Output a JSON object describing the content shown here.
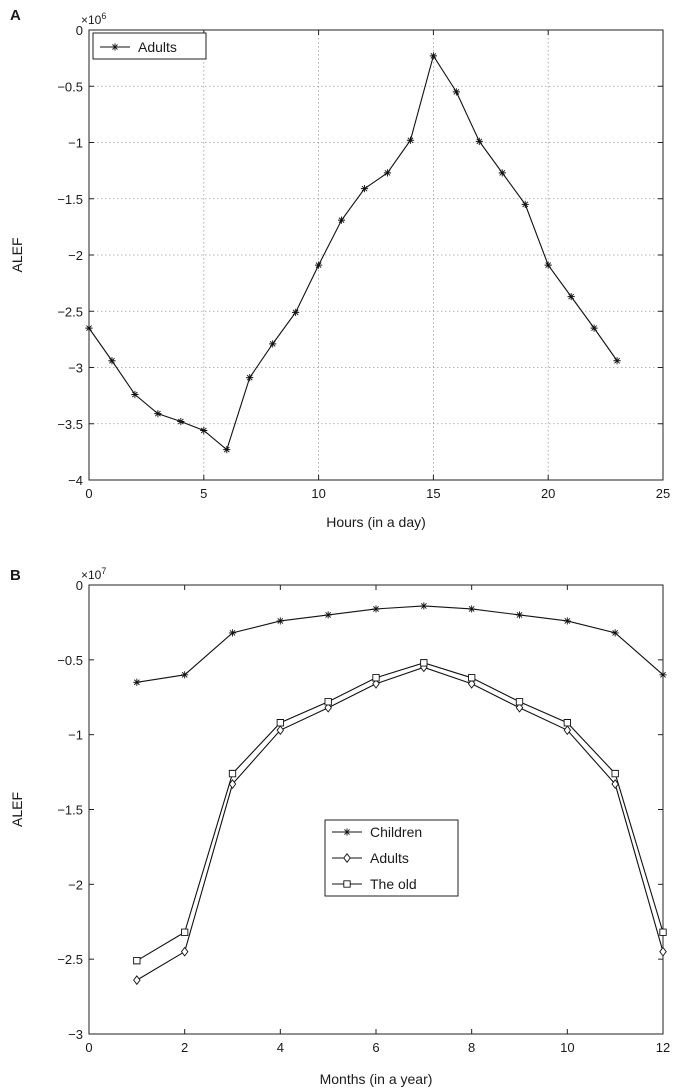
{
  "chart_data": [
    {
      "panel": "A",
      "type": "line",
      "xlabel": "Hours (in a day)",
      "ylabel": "ALEF",
      "y_multiplier": "×10",
      "y_multiplier_exp": "6",
      "xlim": [
        0,
        25
      ],
      "ylim": [
        -4,
        0
      ],
      "xticks": [
        0,
        5,
        10,
        15,
        20,
        25
      ],
      "yticks": [
        0,
        -0.5,
        -1,
        -1.5,
        -2,
        -2.5,
        -3,
        -3.5,
        -4
      ],
      "xtick_labels": [
        "0",
        "5",
        "10",
        "15",
        "20",
        "25"
      ],
      "ytick_labels": [
        "0",
        "−0.5",
        "−1",
        "−1.5",
        "−2",
        "−2.5",
        "−3",
        "−3.5",
        "−4"
      ],
      "grid": true,
      "legend_position": "top-left",
      "series": [
        {
          "name": "Adults",
          "marker": "star",
          "x": [
            0,
            1,
            2,
            3,
            4,
            5,
            6,
            7,
            8,
            9,
            10,
            11,
            12,
            13,
            14,
            15,
            16,
            17,
            18,
            19,
            20,
            21,
            22,
            23
          ],
          "y": [
            -2.65,
            -2.94,
            -3.24,
            -3.41,
            -3.48,
            -3.56,
            -3.73,
            -3.09,
            -2.79,
            -2.51,
            -2.09,
            -1.69,
            -1.41,
            -1.27,
            -0.98,
            -0.23,
            -0.55,
            -0.99,
            -1.27,
            -1.55,
            -2.09,
            -2.37,
            -2.65,
            -2.94
          ]
        }
      ]
    },
    {
      "panel": "B",
      "type": "line",
      "xlabel": "Months (in a year)",
      "ylabel": "ALEF",
      "y_multiplier": "×10",
      "y_multiplier_exp": "7",
      "xlim": [
        0,
        12
      ],
      "ylim": [
        -3,
        0
      ],
      "xticks": [
        0,
        2,
        4,
        6,
        8,
        10,
        12
      ],
      "yticks": [
        0,
        -0.5,
        -1,
        -1.5,
        -2,
        -2.5,
        -3
      ],
      "xtick_labels": [
        "0",
        "2",
        "4",
        "6",
        "8",
        "10",
        "12"
      ],
      "ytick_labels": [
        "0",
        "−0.5",
        "−1",
        "−1.5",
        "−2",
        "−2.5",
        "−3"
      ],
      "grid": false,
      "legend_position": "center",
      "series": [
        {
          "name": "Children",
          "marker": "star",
          "x": [
            1,
            2,
            3,
            4,
            5,
            6,
            7,
            8,
            9,
            10,
            11,
            12
          ],
          "y": [
            -0.65,
            -0.6,
            -0.32,
            -0.24,
            -0.2,
            -0.16,
            -0.14,
            -0.16,
            -0.2,
            -0.24,
            -0.32,
            -0.6
          ]
        },
        {
          "name": "Adults",
          "marker": "diamond",
          "x": [
            1,
            2,
            3,
            4,
            5,
            6,
            7,
            8,
            9,
            10,
            11,
            12
          ],
          "y": [
            -2.64,
            -2.45,
            -1.33,
            -0.97,
            -0.82,
            -0.66,
            -0.55,
            -0.66,
            -0.82,
            -0.97,
            -1.33,
            -2.45
          ]
        },
        {
          "name": "The old",
          "marker": "square",
          "x": [
            1,
            2,
            3,
            4,
            5,
            6,
            7,
            8,
            9,
            10,
            11,
            12
          ],
          "y": [
            -2.51,
            -2.32,
            -1.26,
            -0.92,
            -0.78,
            -0.62,
            -0.52,
            -0.62,
            -0.78,
            -0.92,
            -1.26,
            -2.32
          ]
        }
      ]
    }
  ]
}
